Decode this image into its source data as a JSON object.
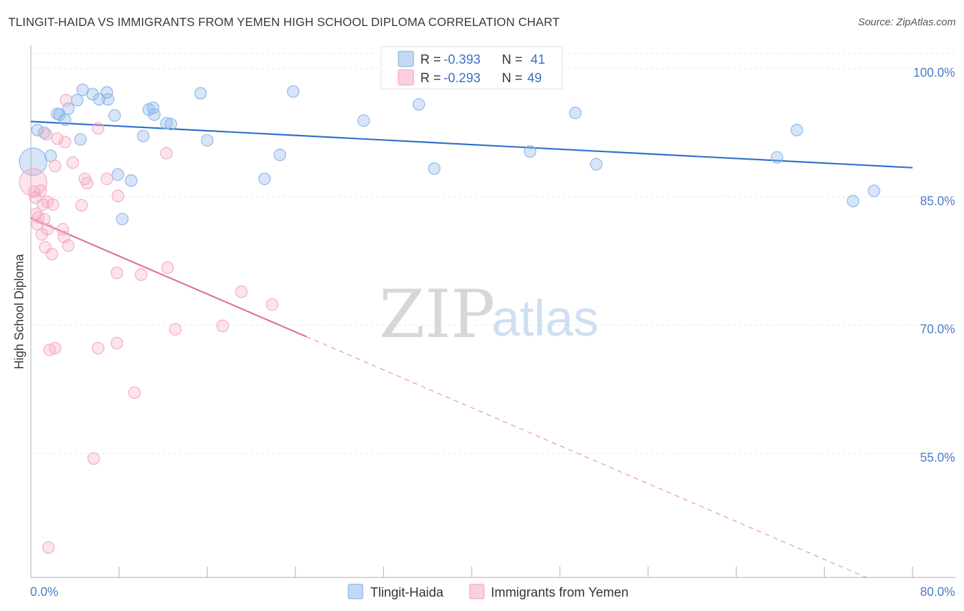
{
  "header": {
    "title": "TLINGIT-HAIDA VS IMMIGRANTS FROM YEMEN HIGH SCHOOL DIPLOMA CORRELATION CHART",
    "source": "Source: ZipAtlas.com"
  },
  "watermark": {
    "zip": "ZIP",
    "atlas": "atlas"
  },
  "legend": {
    "rows": [
      {
        "r_label": "R =",
        "r_value": "-0.393",
        "n_label": "N =",
        "n_value": "41"
      },
      {
        "r_label": "R =",
        "r_value": "-0.293",
        "n_label": "N =",
        "n_value": "49"
      }
    ]
  },
  "chart_data": {
    "type": "scatter",
    "title": "TLINGIT-HAIDA VS IMMIGRANTS FROM YEMEN HIGH SCHOOL DIPLOMA CORRELATION CHART",
    "xlabel": "",
    "ylabel": "High School Diploma",
    "xlim": [
      0,
      80
    ],
    "ylim": [
      40.5,
      102
    ],
    "x_tick_labels": [
      "0.0%",
      "80.0%"
    ],
    "y_ticks": [
      55,
      70,
      85,
      100
    ],
    "y_tick_labels": [
      "55.0%",
      "70.0%",
      "85.0%",
      "100.0%"
    ],
    "grid": true,
    "legend_position": "top-center",
    "series": [
      {
        "name": "Tlingit-Haida",
        "color": "#8ab4e8",
        "line_color": "#2f6fcb",
        "r": -0.393,
        "n": 41,
        "trend": {
          "x": [
            0,
            80
          ],
          "y": [
            93.8,
            88.4
          ],
          "dashed_from": null
        },
        "points": [
          {
            "x": 0.2,
            "y": 89.1,
            "big": true
          },
          {
            "x": 0.6,
            "y": 92.8
          },
          {
            "x": 1.2,
            "y": 92.5
          },
          {
            "x": 1.8,
            "y": 89.8
          },
          {
            "x": 2.4,
            "y": 94.7
          },
          {
            "x": 2.6,
            "y": 94.6
          },
          {
            "x": 3.1,
            "y": 94.0
          },
          {
            "x": 3.4,
            "y": 95.3
          },
          {
            "x": 4.2,
            "y": 96.3
          },
          {
            "x": 4.5,
            "y": 91.7
          },
          {
            "x": 4.7,
            "y": 97.5
          },
          {
            "x": 5.6,
            "y": 97.0
          },
          {
            "x": 6.2,
            "y": 96.4
          },
          {
            "x": 6.9,
            "y": 97.2
          },
          {
            "x": 7.0,
            "y": 96.4
          },
          {
            "x": 7.6,
            "y": 94.5
          },
          {
            "x": 7.9,
            "y": 87.6
          },
          {
            "x": 8.3,
            "y": 82.4
          },
          {
            "x": 9.1,
            "y": 86.9
          },
          {
            "x": 10.2,
            "y": 92.1
          },
          {
            "x": 10.7,
            "y": 95.2
          },
          {
            "x": 11.1,
            "y": 95.4
          },
          {
            "x": 11.2,
            "y": 94.6
          },
          {
            "x": 12.3,
            "y": 93.6
          },
          {
            "x": 12.7,
            "y": 93.5
          },
          {
            "x": 15.4,
            "y": 97.1
          },
          {
            "x": 16.0,
            "y": 91.6
          },
          {
            "x": 21.2,
            "y": 87.1
          },
          {
            "x": 22.6,
            "y": 89.9
          },
          {
            "x": 23.8,
            "y": 97.3
          },
          {
            "x": 30.2,
            "y": 93.9
          },
          {
            "x": 35.2,
            "y": 95.8
          },
          {
            "x": 36.6,
            "y": 88.3
          },
          {
            "x": 45.3,
            "y": 90.3
          },
          {
            "x": 49.4,
            "y": 94.8
          },
          {
            "x": 51.3,
            "y": 88.8
          },
          {
            "x": 67.7,
            "y": 89.6
          },
          {
            "x": 69.5,
            "y": 92.8
          },
          {
            "x": 74.6,
            "y": 84.5
          },
          {
            "x": 76.5,
            "y": 85.7
          }
        ]
      },
      {
        "name": "Immigrants from Yemen",
        "color": "#f4a7bf",
        "line_color": "#e06f96",
        "r": -0.293,
        "n": 49,
        "trend": {
          "x": [
            0,
            75.8
          ],
          "y": [
            82.5,
            40.5
          ],
          "dashed_from": 25.0
        },
        "points": [
          {
            "x": 0.2,
            "y": 86.7,
            "big": true
          },
          {
            "x": 0.3,
            "y": 85.6
          },
          {
            "x": 0.4,
            "y": 84.9
          },
          {
            "x": 0.5,
            "y": 83.0
          },
          {
            "x": 0.6,
            "y": 81.8
          },
          {
            "x": 0.7,
            "y": 82.6
          },
          {
            "x": 0.9,
            "y": 85.7
          },
          {
            "x": 1.0,
            "y": 80.6
          },
          {
            "x": 1.1,
            "y": 84.1
          },
          {
            "x": 1.2,
            "y": 82.4
          },
          {
            "x": 1.3,
            "y": 79.1
          },
          {
            "x": 1.4,
            "y": 92.3
          },
          {
            "x": 1.5,
            "y": 81.2
          },
          {
            "x": 1.5,
            "y": 84.4
          },
          {
            "x": 1.6,
            "y": 44.0
          },
          {
            "x": 1.7,
            "y": 67.1
          },
          {
            "x": 1.9,
            "y": 78.3
          },
          {
            "x": 2.0,
            "y": 84.1
          },
          {
            "x": 2.2,
            "y": 67.3
          },
          {
            "x": 2.2,
            "y": 88.6
          },
          {
            "x": 2.4,
            "y": 91.8
          },
          {
            "x": 2.9,
            "y": 81.2
          },
          {
            "x": 3.0,
            "y": 80.3
          },
          {
            "x": 3.1,
            "y": 91.4
          },
          {
            "x": 3.2,
            "y": 96.3
          },
          {
            "x": 3.4,
            "y": 79.3
          },
          {
            "x": 3.8,
            "y": 89.0
          },
          {
            "x": 4.6,
            "y": 84.0
          },
          {
            "x": 4.9,
            "y": 87.1
          },
          {
            "x": 5.1,
            "y": 86.6
          },
          {
            "x": 5.7,
            "y": 54.4
          },
          {
            "x": 6.1,
            "y": 67.3
          },
          {
            "x": 6.1,
            "y": 93.0
          },
          {
            "x": 6.9,
            "y": 87.1
          },
          {
            "x": 7.8,
            "y": 67.9
          },
          {
            "x": 7.8,
            "y": 76.1
          },
          {
            "x": 7.9,
            "y": 85.1
          },
          {
            "x": 9.4,
            "y": 62.1
          },
          {
            "x": 10.0,
            "y": 75.9
          },
          {
            "x": 12.3,
            "y": 90.1
          },
          {
            "x": 12.4,
            "y": 76.7
          },
          {
            "x": 13.1,
            "y": 69.5
          },
          {
            "x": 17.4,
            "y": 69.9
          },
          {
            "x": 19.1,
            "y": 73.9
          },
          {
            "x": 21.9,
            "y": 72.4
          }
        ]
      }
    ]
  }
}
